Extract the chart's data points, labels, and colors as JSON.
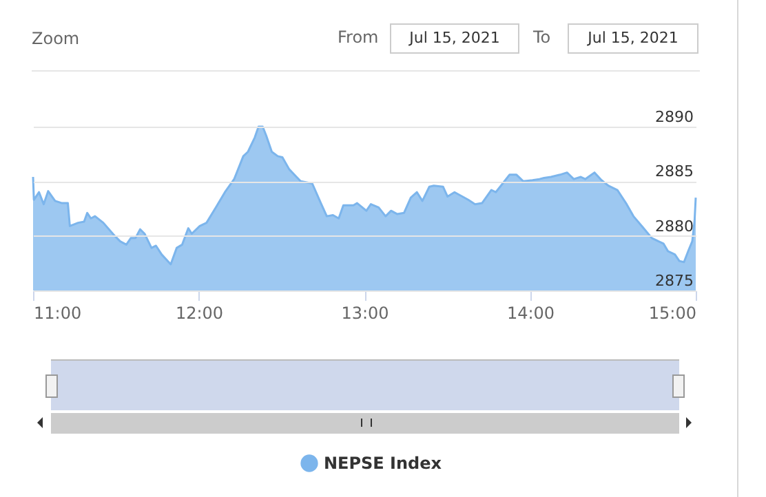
{
  "chart_data": {
    "type": "area",
    "annotations": [
      "Zoom",
      "From",
      "Jul 15, 2021",
      "To",
      "Jul 15, 2021"
    ],
    "x": [
      11.0,
      11.005,
      11.036,
      11.064,
      11.091,
      11.133,
      11.175,
      11.21,
      11.222,
      11.272,
      11.308,
      11.327,
      11.349,
      11.374,
      11.424,
      11.493,
      11.526,
      11.563,
      11.59,
      11.618,
      11.646,
      11.673,
      11.715,
      11.742,
      11.776,
      11.831,
      11.867,
      11.9,
      11.937,
      11.958,
      12.006,
      12.047,
      12.103,
      12.158,
      12.214,
      12.269,
      12.297,
      12.338,
      12.361,
      12.386,
      12.407,
      12.441,
      12.477,
      12.505,
      12.546,
      12.615,
      12.652,
      12.685,
      12.74,
      12.773,
      12.81,
      12.845,
      12.873,
      12.934,
      12.956,
      13.012,
      13.039,
      13.086,
      13.128,
      13.161,
      13.197,
      13.239,
      13.28,
      13.317,
      13.35,
      13.392,
      13.419,
      13.475,
      13.502,
      13.544,
      13.627,
      13.668,
      13.71,
      13.766,
      13.793,
      13.835,
      13.876,
      13.918,
      13.959,
      14.015,
      14.057,
      14.084,
      14.126,
      14.181,
      14.223,
      14.264,
      14.306,
      14.333,
      14.389,
      14.431,
      14.472,
      14.527,
      14.583,
      14.624,
      14.68,
      14.735,
      14.776,
      14.805,
      14.832,
      14.874,
      14.901,
      14.929,
      14.957,
      14.979,
      14.993,
      15.0
    ],
    "series": [
      {
        "name": "NEPSE Index",
        "color": "#7cb5ec",
        "values": [
          2885.4,
          2883.3,
          2884.0,
          2882.9,
          2884.1,
          2883.2,
          2883.0,
          2883.0,
          2880.9,
          2881.2,
          2881.3,
          2882.1,
          2881.6,
          2881.8,
          2881.2,
          2880.0,
          2879.5,
          2879.2,
          2879.8,
          2879.8,
          2880.6,
          2880.2,
          2878.9,
          2879.1,
          2878.3,
          2877.4,
          2878.9,
          2879.2,
          2880.7,
          2880.2,
          2880.9,
          2881.2,
          2882.6,
          2884.0,
          2885.2,
          2887.3,
          2887.7,
          2889.0,
          2890.0,
          2890.0,
          2889.2,
          2887.7,
          2887.3,
          2887.2,
          2886.1,
          2885.0,
          2884.9,
          2884.8,
          2882.9,
          2881.8,
          2881.9,
          2881.6,
          2882.8,
          2882.8,
          2883.0,
          2882.3,
          2882.9,
          2882.6,
          2881.8,
          2882.3,
          2882.0,
          2882.1,
          2883.5,
          2884.0,
          2883.2,
          2884.5,
          2884.6,
          2884.5,
          2883.6,
          2884.0,
          2883.3,
          2882.9,
          2883.0,
          2884.2,
          2884.0,
          2884.8,
          2885.6,
          2885.6,
          2885.0,
          2885.1,
          2885.2,
          2885.3,
          2885.4,
          2885.6,
          2885.8,
          2885.2,
          2885.4,
          2885.2,
          2885.8,
          2885.1,
          2884.6,
          2884.2,
          2882.9,
          2881.8,
          2880.8,
          2879.8,
          2879.5,
          2879.3,
          2878.6,
          2878.3,
          2877.7,
          2877.6,
          2878.7,
          2879.5,
          2881.4,
          2883.5
        ]
      }
    ],
    "xlim": [
      11,
      15
    ],
    "xticks": [
      {
        "value": 11,
        "label": "11:00"
      },
      {
        "value": 12,
        "label": "12:00"
      },
      {
        "value": 13,
        "label": "13:00"
      },
      {
        "value": 14,
        "label": "14:00"
      },
      {
        "value": 15,
        "label": "15:00"
      }
    ],
    "ylim": [
      2875,
      2890
    ],
    "yticks": [
      2875,
      2880,
      2885,
      2890
    ],
    "grid": "y",
    "legend": "bottom"
  }
}
